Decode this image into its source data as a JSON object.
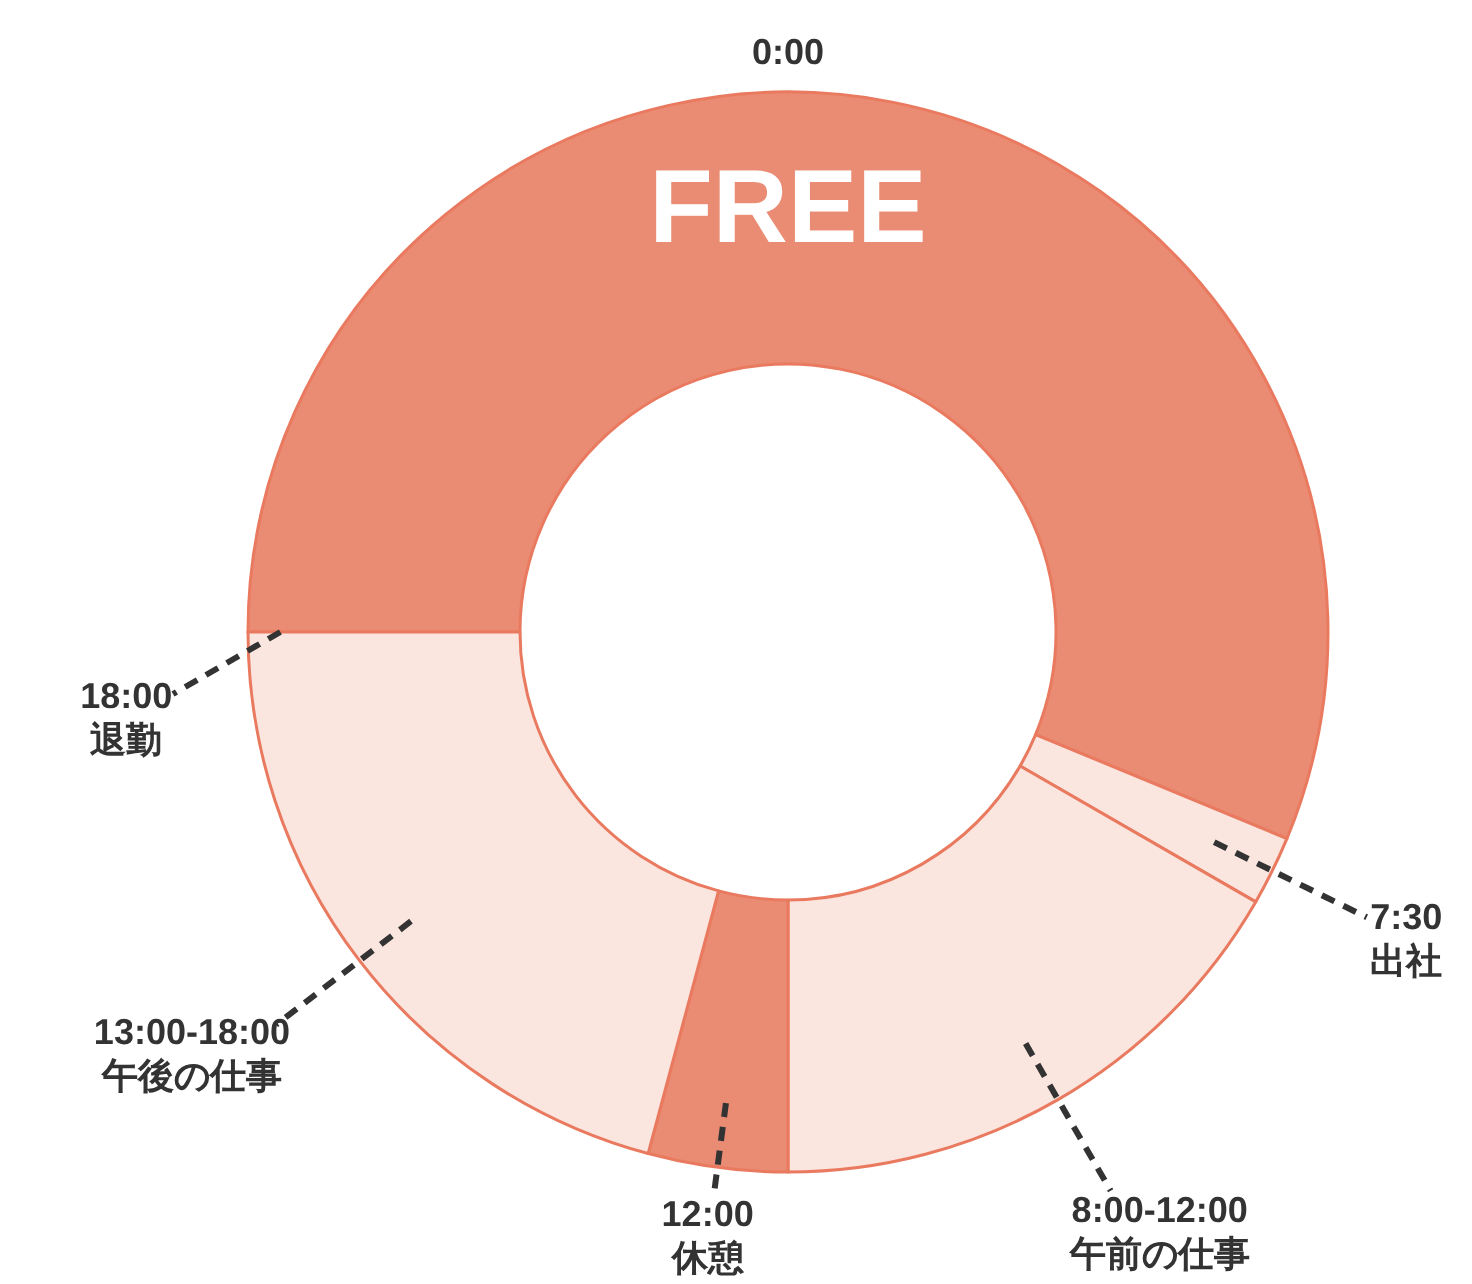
{
  "chart_data": {
    "type": "donut",
    "categories": [
      "FREE",
      "7:30\n出社",
      "8:00-12:00\n午前の仕事",
      "12:00\n休憩",
      "13:00-18:00\n午後の仕事"
    ],
    "values": [
      56.25,
      2.08,
      16.67,
      4.17,
      20.83
    ],
    "colors": [
      "#ea8b73",
      "#fbe5df",
      "#fbe5df",
      "#ea8b73",
      "#fbe5df"
    ],
    "annotations": [
      "0:00",
      "18:00\n退勤"
    ],
    "legend": false
  }
}
